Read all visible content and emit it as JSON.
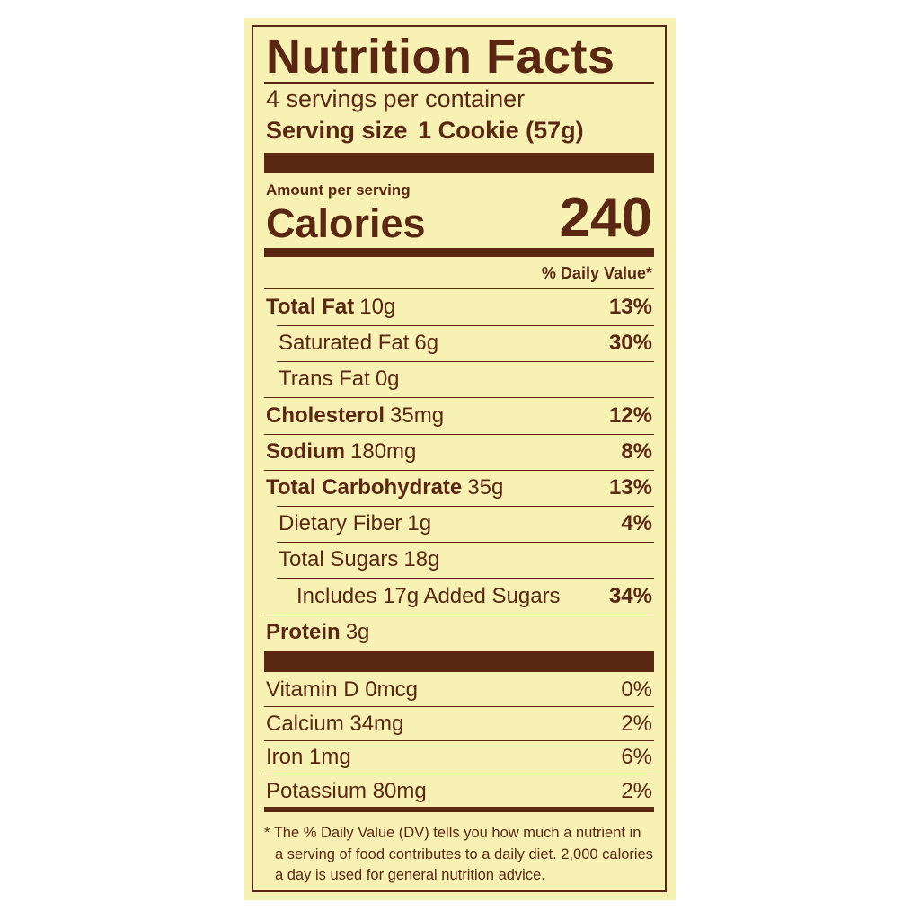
{
  "title": "Nutrition Facts",
  "servings": "4 servings per container",
  "serving_size": {
    "label": "Serving size",
    "value": "1 Cookie (57g)"
  },
  "amount_per_serving": "Amount per serving",
  "calories": {
    "label": "Calories",
    "value": "240"
  },
  "dv_header": "% Daily Value*",
  "nutrients": [
    {
      "name": "Total Fat",
      "amount": "10g",
      "dv": "13%"
    },
    {
      "name": "Saturated Fat",
      "amount": "6g",
      "dv": "30%"
    },
    {
      "name": "Trans Fat",
      "amount": "0g"
    },
    {
      "name": "Cholesterol",
      "amount": "35mg",
      "dv": "12%"
    },
    {
      "name": "Sodium",
      "amount": "180mg",
      "dv": "8%"
    },
    {
      "name": "Total Carbohydrate",
      "amount": "35g",
      "dv": "13%"
    },
    {
      "name": "Dietary Fiber",
      "amount": "1g",
      "dv": "4%"
    },
    {
      "name": "Total Sugars",
      "amount": "18g"
    },
    {
      "name": "Includes 17g Added Sugars",
      "dv": "34%"
    },
    {
      "name": "Protein",
      "amount": "3g"
    }
  ],
  "vitamins": [
    {
      "name": "Vitamin D 0mcg",
      "dv": "0%"
    },
    {
      "name": "Calcium 34mg",
      "dv": "2%"
    },
    {
      "name": "Iron 1mg",
      "dv": "6%"
    },
    {
      "name": "Potassium 80mg",
      "dv": "2%"
    }
  ],
  "footnote": [
    "* The % Daily Value (DV) tells you how much a nutrient in",
    "a serving of food contributes to a daily diet. 2,000 calories",
    "a day is used for general nutrition advice."
  ]
}
